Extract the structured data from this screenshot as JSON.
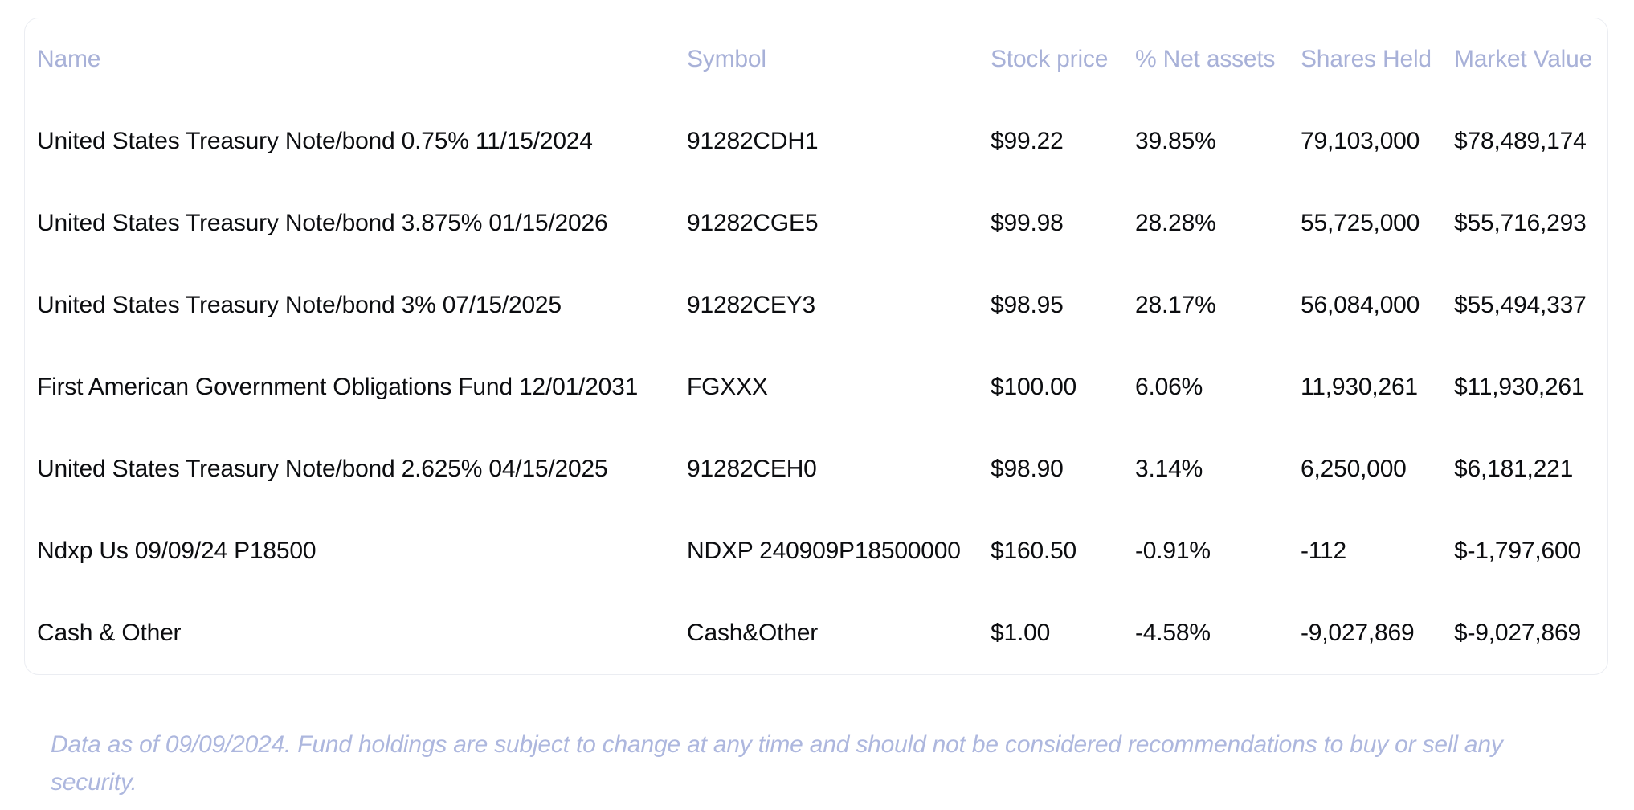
{
  "table": {
    "columns": [
      {
        "label": "Name"
      },
      {
        "label": "Symbol"
      },
      {
        "label": "Stock price"
      },
      {
        "label": "% Net assets"
      },
      {
        "label": "Shares Held"
      },
      {
        "label": "Market Value"
      }
    ],
    "rows": [
      [
        "United States Treasury Note/bond 0.75% 11/15/2024",
        "91282CDH1",
        "$99.22",
        "39.85%",
        "79,103,000",
        "$78,489,174"
      ],
      [
        "United States Treasury Note/bond 3.875% 01/15/2026",
        "91282CGE5",
        "$99.98",
        "28.28%",
        "55,725,000",
        "$55,716,293"
      ],
      [
        "United States Treasury Note/bond 3% 07/15/2025",
        "91282CEY3",
        "$98.95",
        "28.17%",
        "56,084,000",
        "$55,494,337"
      ],
      [
        "First American Government Obligations Fund 12/01/2031",
        "FGXXX",
        "$100.00",
        "6.06%",
        "11,930,261",
        "$11,930,261"
      ],
      [
        "United States Treasury Note/bond 2.625% 04/15/2025",
        "91282CEH0",
        "$98.90",
        "3.14%",
        "6,250,000",
        "$6,181,221"
      ],
      [
        "Ndxp Us 09/09/24 P18500",
        "NDXP 240909P18500000",
        "$160.50",
        "-0.91%",
        "-112",
        "$-1,797,600"
      ],
      [
        "Cash & Other",
        "Cash&Other",
        "$1.00",
        "-4.58%",
        "-9,027,869",
        "$-9,027,869"
      ]
    ]
  },
  "footer": {
    "disclaimer": "Data as of 09/09/2024. Fund holdings are subject to change at any time and should not be considered recommendations to buy or sell any security."
  },
  "colors": {
    "header_text": "#a8b1d8",
    "body_text": "#0c0d10",
    "card_border": "#ebedf2",
    "footer_text": "#adb7de",
    "background": "#ffffff"
  }
}
